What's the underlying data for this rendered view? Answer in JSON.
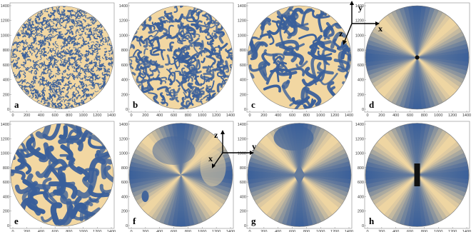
{
  "figure": {
    "colors": {
      "blue": "#3a5f9a",
      "tan": "#f2d7a2",
      "frame": "#888888",
      "core": "#111111"
    },
    "panels": [
      {
        "label": "a",
        "pattern": "turbulent-fine",
        "xticks": [
          "0",
          "200",
          "400",
          "600",
          "800",
          "1000",
          "1200",
          "1400"
        ],
        "yticks": [
          "0",
          "200",
          "400",
          "600",
          "800",
          "1000",
          "1200",
          "1400"
        ]
      },
      {
        "label": "b",
        "pattern": "turbulent-medium",
        "xticks": [
          "0",
          "200",
          "400",
          "600",
          "800",
          "1000",
          "1200",
          "1400"
        ],
        "yticks": [
          "0",
          "200",
          "400",
          "600",
          "800",
          "1000",
          "1200",
          "1400"
        ]
      },
      {
        "label": "c",
        "pattern": "turbulent-coarse",
        "xticks": [
          "0",
          "200",
          "400",
          "600",
          "800",
          "1000",
          "1200",
          "1400"
        ],
        "yticks": [
          "0",
          "200",
          "400",
          "600",
          "800",
          "1000",
          "1200",
          "1400"
        ]
      },
      {
        "label": "d",
        "pattern": "radial-point",
        "xticks": [
          "0",
          "200",
          "400",
          "600",
          "800",
          "1000",
          "1200",
          "1400"
        ],
        "yticks": [
          "0",
          "200",
          "400",
          "600",
          "800",
          "1000",
          "1200",
          "1400"
        ]
      },
      {
        "label": "e",
        "pattern": "turbulent-large",
        "xticks": [
          "0",
          "200",
          "400",
          "600",
          "800",
          "1000",
          "1200",
          "1400"
        ],
        "yticks": [
          "0",
          "200",
          "400",
          "600",
          "800",
          "1000",
          "1200",
          "1400"
        ]
      },
      {
        "label": "f",
        "pattern": "cross-defect",
        "xticks": [
          "0",
          "200",
          "400",
          "600",
          "800",
          "1000",
          "1200",
          "1400"
        ],
        "yticks": [
          "0",
          "200",
          "400",
          "600",
          "800",
          "1000",
          "1200",
          "1400"
        ]
      },
      {
        "label": "g",
        "pattern": "radial-diamond",
        "xticks": [
          "0",
          "200",
          "400",
          "600",
          "800",
          "1000",
          "1200",
          "1400"
        ],
        "yticks": [
          "0",
          "200",
          "400",
          "600",
          "800",
          "1000",
          "1200",
          "1400"
        ]
      },
      {
        "label": "h",
        "pattern": "radial-bar",
        "xticks": [
          "0",
          "200",
          "400",
          "600",
          "800",
          "1000",
          "1200",
          "1400"
        ],
        "yticks": [
          "0",
          "200",
          "400",
          "600",
          "800",
          "1000",
          "1200",
          "1400"
        ]
      }
    ],
    "axes_triads": [
      {
        "vertical": "y",
        "left": "z",
        "horizontal": "x"
      },
      {
        "vertical": "z",
        "left": "x",
        "horizontal": "y"
      }
    ]
  }
}
